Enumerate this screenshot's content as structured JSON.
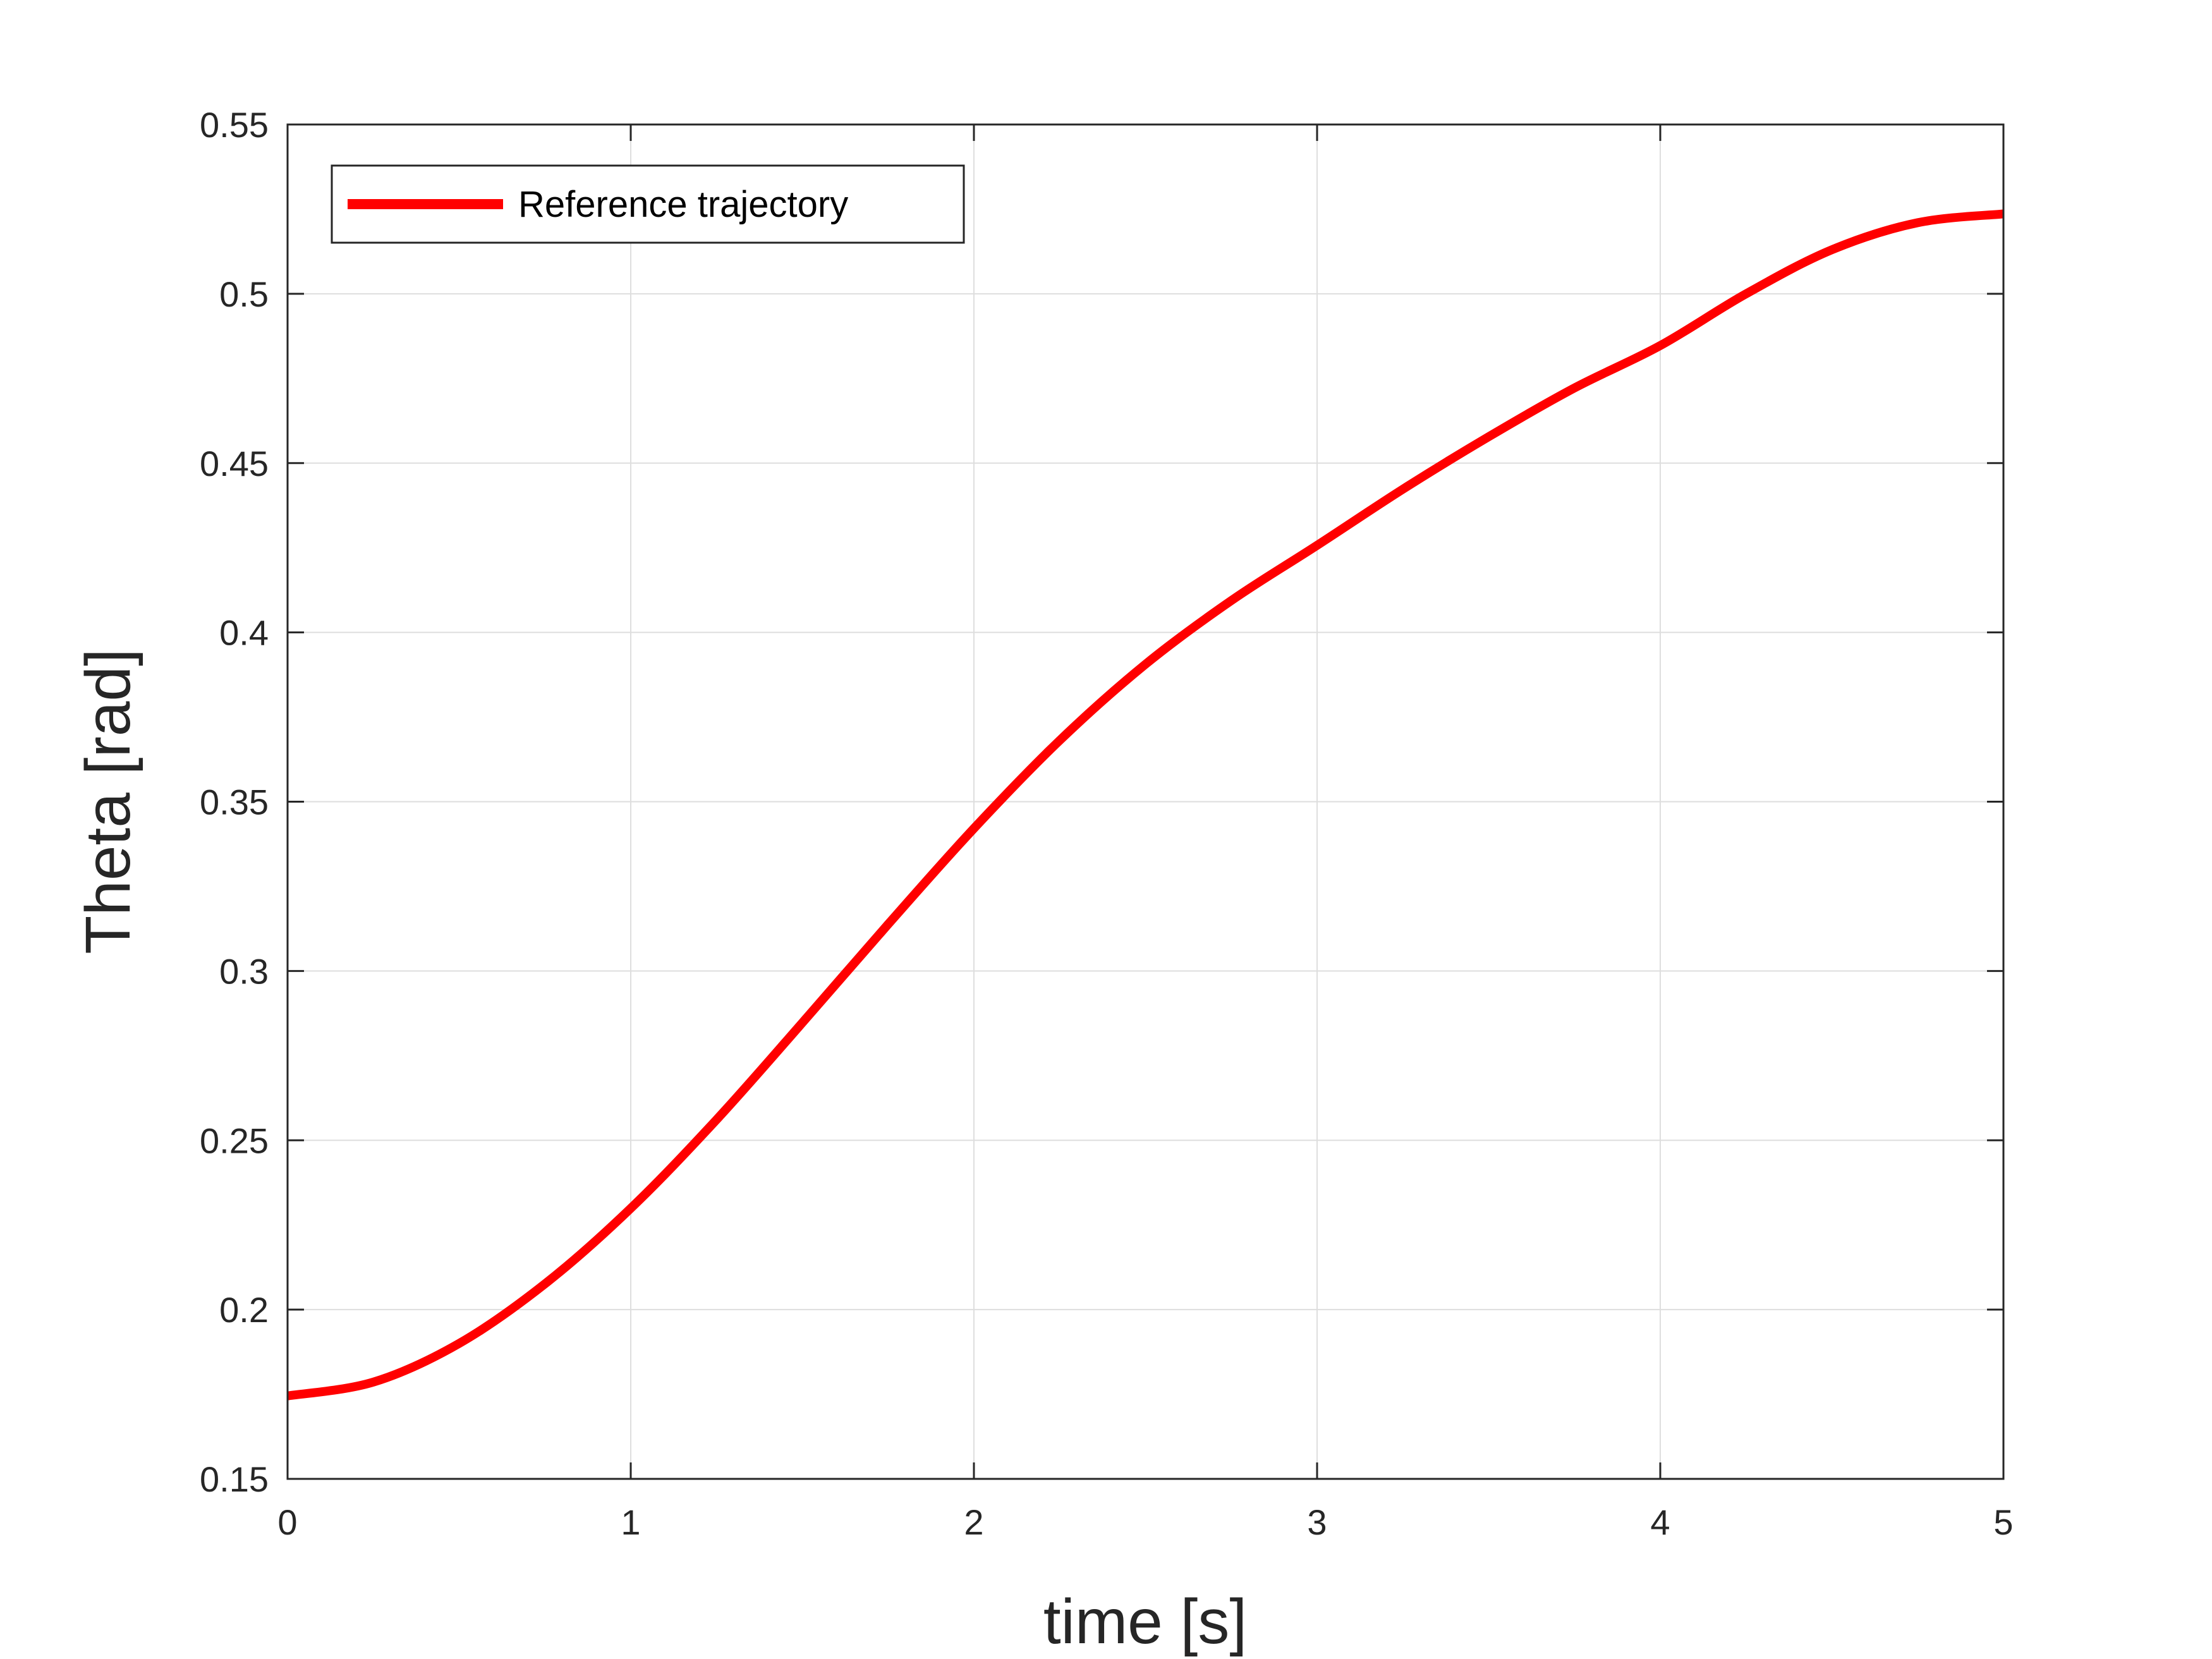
{
  "chart_data": {
    "type": "line",
    "title": "",
    "xlabel": "time [s]",
    "ylabel": "Theta [rad]",
    "xlim": [
      0,
      5
    ],
    "ylim": [
      0.15,
      0.55
    ],
    "x_ticks": [
      "0",
      "1",
      "2",
      "3",
      "4",
      "5"
    ],
    "y_ticks": [
      "0.15",
      "0.2",
      "0.25",
      "0.3",
      "0.35",
      "0.4",
      "0.45",
      "0.5",
      "0.55"
    ],
    "grid": true,
    "legend": {
      "position": "top-left",
      "entries": [
        "Reference trajectory"
      ]
    },
    "series": [
      {
        "name": "Reference trajectory",
        "color": "#ff0000",
        "x": [
          0,
          0.25,
          0.5,
          0.75,
          1,
          1.25,
          1.5,
          1.75,
          2,
          2.25,
          2.5,
          2.75,
          3,
          3.25,
          3.5,
          3.75,
          4,
          4.25,
          4.5,
          4.75,
          5
        ],
        "y": [
          0.1745,
          0.1786,
          0.19,
          0.2076,
          0.2299,
          0.2561,
          0.2847,
          0.3138,
          0.3421,
          0.3681,
          0.3906,
          0.4094,
          0.4257,
          0.4423,
          0.4578,
          0.4722,
          0.4847,
          0.5,
          0.513,
          0.521,
          0.5236
        ]
      }
    ]
  }
}
